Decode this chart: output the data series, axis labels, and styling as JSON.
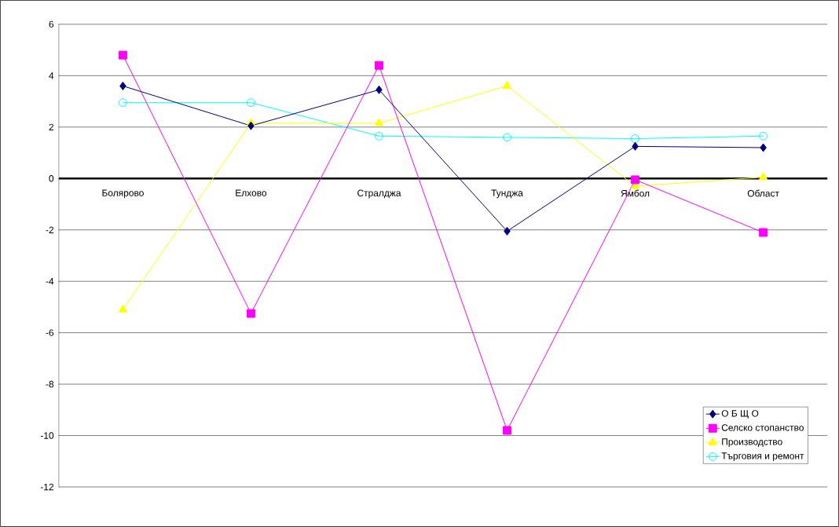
{
  "chart_data": {
    "type": "line",
    "categories": [
      "Болярово",
      "Елхово",
      "Стралджа",
      "Тунджа",
      "Ямбол",
      "Област"
    ],
    "series": [
      {
        "name": "О Б Щ О",
        "color": "#000080",
        "marker": "diamond",
        "values": [
          3.6,
          2.05,
          3.45,
          -2.05,
          1.25,
          1.2
        ]
      },
      {
        "name": "Селско стопанство",
        "color": "#ff00ff",
        "marker": "square",
        "values": [
          4.8,
          -5.25,
          4.4,
          -9.8,
          -0.05,
          -2.1
        ]
      },
      {
        "name": "Производство",
        "color": "#ffff00",
        "marker": "triangle",
        "values": [
          -5.1,
          2.15,
          2.15,
          3.6,
          -0.3,
          0.05
        ]
      },
      {
        "name": "Търговия и ремонт",
        "color": "#00ffff",
        "marker": "circle",
        "values": [
          2.95,
          2.95,
          1.65,
          1.6,
          1.55,
          1.65
        ]
      }
    ],
    "ylim": [
      -12,
      6
    ],
    "yticks": [
      -12,
      -10,
      -8,
      -6,
      -4,
      -2,
      0,
      2,
      4,
      6
    ],
    "grid": "y",
    "legend": "bottom right"
  }
}
